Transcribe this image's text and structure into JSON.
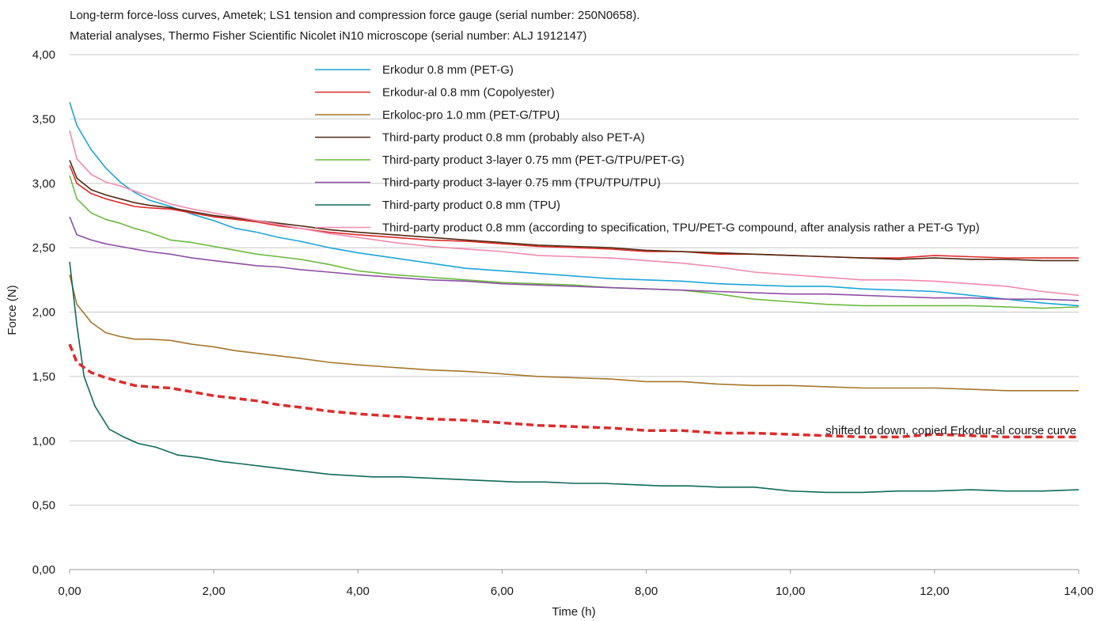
{
  "chart_data": {
    "type": "line",
    "title": "Long-term force-loss curves, Ametek; LS1 tension and compression force gauge (serial number: 250N0658).",
    "subtitle": "Material analyses, Thermo Fisher Scientific Nicolet iN10 microscope (serial number: ALJ 1912147)",
    "xlabel": "Time (h)",
    "ylabel": "Force (N)",
    "xlim": [
      0,
      14
    ],
    "ylim": [
      0,
      4
    ],
    "x_ticks": [
      "0,00",
      "2,00",
      "4,00",
      "6,00",
      "8,00",
      "10,00",
      "12,00",
      "14,00"
    ],
    "y_ticks": [
      "0,00",
      "0,50",
      "1,00",
      "1,50",
      "2,00",
      "2,50",
      "3,00",
      "3,50",
      "4,00"
    ],
    "grid": "horizontal",
    "legend_position": "top-right",
    "series": [
      {
        "name": "Erkodur 0.8 mm (PET-G)",
        "color": "#1ba6d6",
        "style": "solid",
        "x": [
          0,
          0.1,
          0.3,
          0.5,
          0.7,
          0.9,
          1.1,
          1.4,
          1.7,
          2.0,
          2.3,
          2.6,
          2.9,
          3.2,
          3.6,
          4.0,
          4.5,
          5.0,
          5.5,
          6.0,
          6.5,
          7.0,
          7.5,
          8.0,
          8.5,
          9.0,
          9.5,
          10.0,
          10.5,
          11.0,
          11.5,
          12.0,
          12.5,
          13.0,
          13.5,
          14.0
        ],
        "y": [
          3.63,
          3.45,
          3.26,
          3.12,
          3.01,
          2.93,
          2.87,
          2.82,
          2.76,
          2.71,
          2.65,
          2.62,
          2.58,
          2.55,
          2.5,
          2.46,
          2.42,
          2.38,
          2.34,
          2.32,
          2.3,
          2.28,
          2.26,
          2.25,
          2.24,
          2.22,
          2.21,
          2.2,
          2.2,
          2.18,
          2.17,
          2.16,
          2.13,
          2.1,
          2.07,
          2.05
        ]
      },
      {
        "name": "Erkodur-al 0.8 mm (Copolyester)",
        "color": "#e02a2a",
        "style": "solid",
        "x": [
          0,
          0.1,
          0.3,
          0.5,
          0.7,
          0.9,
          1.1,
          1.4,
          1.7,
          2.0,
          2.3,
          2.6,
          2.9,
          3.2,
          3.6,
          4.0,
          4.5,
          5.0,
          5.5,
          6.0,
          6.5,
          7.0,
          7.5,
          8.0,
          8.5,
          9.0,
          9.5,
          10.0,
          10.5,
          11.0,
          11.5,
          12.0,
          12.5,
          13.0,
          13.5,
          14.0
        ],
        "y": [
          3.14,
          3.0,
          2.92,
          2.88,
          2.85,
          2.82,
          2.81,
          2.8,
          2.77,
          2.74,
          2.72,
          2.7,
          2.67,
          2.65,
          2.62,
          2.6,
          2.58,
          2.56,
          2.55,
          2.53,
          2.51,
          2.5,
          2.49,
          2.47,
          2.47,
          2.45,
          2.45,
          2.44,
          2.43,
          2.42,
          2.42,
          2.44,
          2.43,
          2.42,
          2.42,
          2.42
        ]
      },
      {
        "name": "Erkoloc-pro 1.0 mm (PET-G/TPU)",
        "color": "#a5762a",
        "style": "solid",
        "x": [
          0,
          0.1,
          0.3,
          0.5,
          0.7,
          0.9,
          1.1,
          1.4,
          1.7,
          2.0,
          2.3,
          2.6,
          2.9,
          3.2,
          3.6,
          4.0,
          4.5,
          5.0,
          5.5,
          6.0,
          6.5,
          7.0,
          7.5,
          8.0,
          8.5,
          9.0,
          9.5,
          10.0,
          10.5,
          11.0,
          11.5,
          12.0,
          12.5,
          13.0,
          13.5,
          14.0
        ],
        "y": [
          2.29,
          2.06,
          1.92,
          1.84,
          1.81,
          1.79,
          1.79,
          1.78,
          1.75,
          1.73,
          1.7,
          1.68,
          1.66,
          1.64,
          1.61,
          1.59,
          1.57,
          1.55,
          1.54,
          1.52,
          1.5,
          1.49,
          1.48,
          1.46,
          1.46,
          1.44,
          1.43,
          1.43,
          1.42,
          1.41,
          1.41,
          1.41,
          1.4,
          1.39,
          1.39,
          1.39
        ]
      },
      {
        "name": "Third-party product 0.8 mm (probably also PET-A)",
        "color": "#4e2a12",
        "style": "solid",
        "x": [
          0,
          0.1,
          0.3,
          0.5,
          0.7,
          0.9,
          1.1,
          1.4,
          1.7,
          2.0,
          2.3,
          2.6,
          2.9,
          3.2,
          3.6,
          4.0,
          4.5,
          5.0,
          5.5,
          6.0,
          6.5,
          7.0,
          7.5,
          8.0,
          8.5,
          9.0,
          9.5,
          10.0,
          10.5,
          11.0,
          11.5,
          12.0,
          12.5,
          13.0,
          13.5,
          14.0
        ],
        "y": [
          3.18,
          3.04,
          2.95,
          2.91,
          2.88,
          2.85,
          2.83,
          2.81,
          2.78,
          2.75,
          2.73,
          2.71,
          2.69,
          2.67,
          2.64,
          2.62,
          2.6,
          2.58,
          2.56,
          2.54,
          2.52,
          2.51,
          2.5,
          2.48,
          2.47,
          2.46,
          2.45,
          2.44,
          2.43,
          2.42,
          2.41,
          2.42,
          2.41,
          2.41,
          2.4,
          2.4
        ]
      },
      {
        "name": "Third-party product 3-layer 0.75 mm (PET-G/TPU/PET-G)",
        "color": "#6cba3f",
        "style": "solid",
        "x": [
          0,
          0.1,
          0.3,
          0.5,
          0.7,
          0.9,
          1.1,
          1.4,
          1.7,
          2.0,
          2.3,
          2.6,
          2.9,
          3.2,
          3.6,
          4.0,
          4.5,
          5.0,
          5.5,
          6.0,
          6.5,
          7.0,
          7.5,
          8.0,
          8.5,
          9.0,
          9.5,
          10.0,
          10.5,
          11.0,
          11.5,
          12.0,
          12.5,
          13.0,
          13.5,
          14.0
        ],
        "y": [
          3.06,
          2.88,
          2.77,
          2.72,
          2.69,
          2.65,
          2.62,
          2.56,
          2.54,
          2.51,
          2.48,
          2.45,
          2.43,
          2.41,
          2.37,
          2.32,
          2.29,
          2.27,
          2.25,
          2.23,
          2.22,
          2.21,
          2.19,
          2.18,
          2.17,
          2.14,
          2.1,
          2.08,
          2.06,
          2.05,
          2.05,
          2.05,
          2.05,
          2.04,
          2.03,
          2.04
        ]
      },
      {
        "name": "Third-party product 3-layer 0.75 mm (TPU/TPU/TPU)",
        "color": "#8e4fa5",
        "style": "solid",
        "x": [
          0,
          0.1,
          0.3,
          0.5,
          0.7,
          0.9,
          1.1,
          1.4,
          1.7,
          2.0,
          2.3,
          2.6,
          2.9,
          3.2,
          3.6,
          4.0,
          4.5,
          5.0,
          5.5,
          6.0,
          6.5,
          7.0,
          7.5,
          8.0,
          8.5,
          9.0,
          9.5,
          10.0,
          10.5,
          11.0,
          11.5,
          12.0,
          12.5,
          13.0,
          13.5,
          14.0
        ],
        "y": [
          2.74,
          2.6,
          2.56,
          2.53,
          2.51,
          2.49,
          2.47,
          2.45,
          2.42,
          2.4,
          2.38,
          2.36,
          2.35,
          2.33,
          2.31,
          2.29,
          2.27,
          2.25,
          2.24,
          2.22,
          2.21,
          2.2,
          2.19,
          2.18,
          2.17,
          2.16,
          2.15,
          2.14,
          2.14,
          2.13,
          2.12,
          2.11,
          2.11,
          2.1,
          2.1,
          2.09
        ]
      },
      {
        "name": "Third-party product 0.8 mm (TPU)",
        "color": "#0e6a5a",
        "style": "solid",
        "x": [
          0,
          0.1,
          0.2,
          0.35,
          0.55,
          0.75,
          0.95,
          1.2,
          1.5,
          1.8,
          2.1,
          2.4,
          2.7,
          3.0,
          3.3,
          3.6,
          3.9,
          4.2,
          4.6,
          5.0,
          5.4,
          5.8,
          6.2,
          6.6,
          7.0,
          7.4,
          7.8,
          8.2,
          8.6,
          9.0,
          9.5,
          10.0,
          10.5,
          11.0,
          11.5,
          12.0,
          12.5,
          13.0,
          13.5,
          14.0
        ],
        "y": [
          2.39,
          1.9,
          1.5,
          1.27,
          1.09,
          1.03,
          0.98,
          0.95,
          0.89,
          0.87,
          0.84,
          0.82,
          0.8,
          0.78,
          0.76,
          0.74,
          0.73,
          0.72,
          0.72,
          0.71,
          0.7,
          0.69,
          0.68,
          0.68,
          0.67,
          0.67,
          0.66,
          0.65,
          0.65,
          0.64,
          0.64,
          0.61,
          0.6,
          0.6,
          0.61,
          0.61,
          0.62,
          0.61,
          0.61,
          0.62
        ]
      },
      {
        "name": "Third-party product 0.8 mm (according to specification, TPU/PET-G compound, after analysis rather a PET-G Typ)",
        "color": "#f08aae",
        "style": "solid",
        "x": [
          0,
          0.1,
          0.3,
          0.5,
          0.7,
          0.9,
          1.1,
          1.4,
          1.7,
          2.0,
          2.3,
          2.6,
          2.9,
          3.2,
          3.6,
          4.0,
          4.5,
          5.0,
          5.5,
          6.0,
          6.5,
          7.0,
          7.5,
          8.0,
          8.5,
          9.0,
          9.5,
          10.0,
          10.5,
          11.0,
          11.5,
          12.0,
          12.5,
          13.0,
          13.5,
          14.0
        ],
        "y": [
          3.41,
          3.19,
          3.07,
          3.01,
          2.98,
          2.94,
          2.9,
          2.84,
          2.8,
          2.77,
          2.74,
          2.71,
          2.68,
          2.65,
          2.61,
          2.58,
          2.54,
          2.51,
          2.49,
          2.47,
          2.44,
          2.43,
          2.42,
          2.4,
          2.38,
          2.35,
          2.31,
          2.29,
          2.27,
          2.25,
          2.25,
          2.24,
          2.22,
          2.2,
          2.16,
          2.13
        ]
      },
      {
        "name": "",
        "color": "#e02a2a",
        "style": "dashed",
        "x": [
          0,
          0.1,
          0.3,
          0.5,
          0.7,
          0.9,
          1.1,
          1.4,
          1.7,
          2.0,
          2.3,
          2.6,
          2.9,
          3.2,
          3.6,
          4.0,
          4.5,
          5.0,
          5.5,
          6.0,
          6.5,
          7.0,
          7.5,
          8.0,
          8.5,
          9.0,
          9.5,
          10.0,
          10.5,
          11.0,
          11.5,
          12.0,
          12.5,
          13.0,
          13.5,
          14.0
        ],
        "y": [
          1.75,
          1.61,
          1.53,
          1.49,
          1.46,
          1.43,
          1.42,
          1.41,
          1.38,
          1.35,
          1.33,
          1.31,
          1.28,
          1.26,
          1.23,
          1.21,
          1.19,
          1.17,
          1.16,
          1.14,
          1.12,
          1.11,
          1.1,
          1.08,
          1.08,
          1.06,
          1.06,
          1.05,
          1.04,
          1.03,
          1.03,
          1.05,
          1.04,
          1.03,
          1.03,
          1.03
        ]
      }
    ],
    "annotations": [
      {
        "text": "shifted to down, copied Erkodur-al course curve",
        "x": 14,
        "y": 1.08
      }
    ]
  }
}
